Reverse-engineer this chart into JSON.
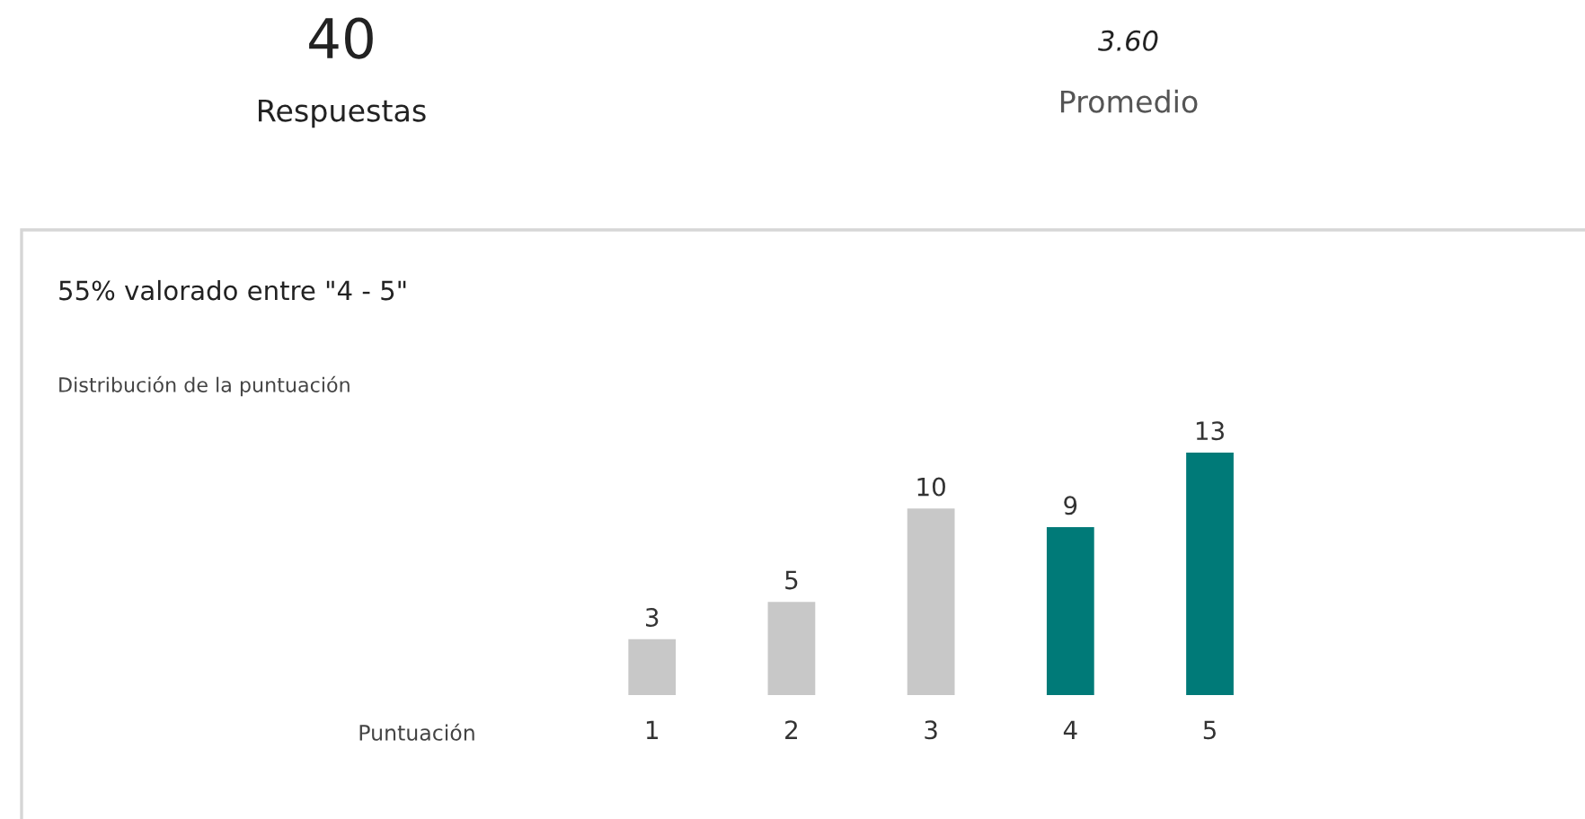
{
  "chart_data": {
    "type": "bar",
    "title": "55% valorado entre \"4 - 5\"",
    "subtitle": "Distribución de la puntuación",
    "categories": [
      "1",
      "2",
      "3",
      "4",
      "5"
    ],
    "values": [
      3,
      5,
      10,
      9,
      13
    ],
    "colors": [
      "#c8c8c8",
      "#c8c8c8",
      "#c8c8c8",
      "#007a78",
      "#007a78"
    ],
    "data_labels": true,
    "grid": false,
    "legend": false,
    "annotations": [
      "40",
      "Respuestas",
      "3.60",
      "Promedio",
      "Puntuación"
    ]
  }
}
